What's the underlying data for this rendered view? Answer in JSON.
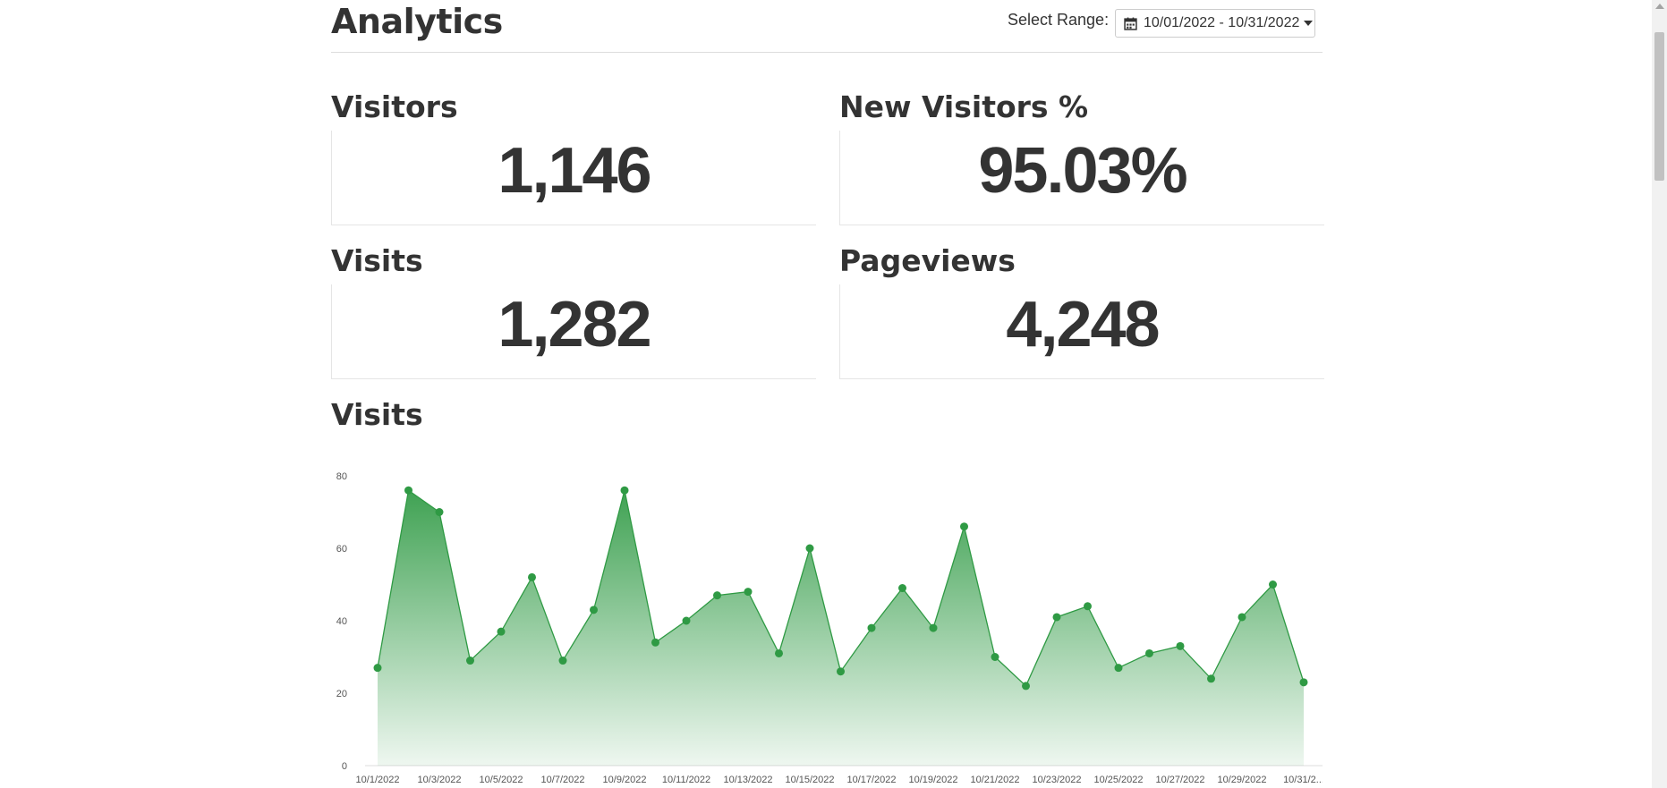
{
  "header": {
    "title": "Analytics",
    "range_label": "Select Range:",
    "range_value": "10/01/2022 - 10/31/2022",
    "range_icon": "calendar-icon",
    "range_caret_icon": "caret-down-icon"
  },
  "stats": {
    "visitors": {
      "label": "Visitors",
      "value": "1,146"
    },
    "new_visitors": {
      "label": "New Visitors %",
      "value": "95.03%"
    },
    "visits": {
      "label": "Visits",
      "value": "1,282"
    },
    "pageviews": {
      "label": "Pageviews",
      "value": "4,248"
    }
  },
  "chart_title": "Visits",
  "colors": {
    "accent": "#2f9a44",
    "text": "#333333"
  },
  "chart_data": {
    "type": "area",
    "x": [
      "10/1/2022",
      "10/2/2022",
      "10/3/2022",
      "10/4/2022",
      "10/5/2022",
      "10/6/2022",
      "10/7/2022",
      "10/8/2022",
      "10/9/2022",
      "10/10/2022",
      "10/11/2022",
      "10/12/2022",
      "10/13/2022",
      "10/14/2022",
      "10/15/2022",
      "10/16/2022",
      "10/17/2022",
      "10/18/2022",
      "10/19/2022",
      "10/20/2022",
      "10/21/2022",
      "10/22/2022",
      "10/23/2022",
      "10/24/2022",
      "10/25/2022",
      "10/26/2022",
      "10/27/2022",
      "10/28/2022",
      "10/29/2022",
      "10/30/2022",
      "10/31/2022"
    ],
    "tick_labels": [
      "10/1/2022",
      "10/3/2022",
      "10/5/2022",
      "10/7/2022",
      "10/9/2022",
      "10/11/2022",
      "10/13/2022",
      "10/15/2022",
      "10/17/2022",
      "10/19/2022",
      "10/21/2022",
      "10/23/2022",
      "10/25/2022",
      "10/27/2022",
      "10/29/2022",
      "10/31/2..."
    ],
    "series": [
      {
        "values": [
          27,
          76,
          70,
          29,
          37,
          52,
          29,
          43,
          76,
          34,
          40,
          47,
          48,
          31,
          60,
          26,
          38,
          49,
          38,
          66,
          30,
          22,
          41,
          44,
          27,
          31,
          33,
          24,
          41,
          50,
          23
        ]
      }
    ],
    "ylim": [
      0,
      80
    ],
    "yticks": [
      0,
      20,
      40,
      60,
      80
    ],
    "grid": false,
    "legend": "none"
  }
}
